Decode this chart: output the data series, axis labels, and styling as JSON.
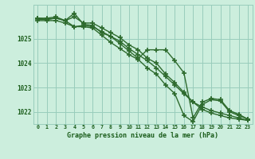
{
  "x": [
    0,
    1,
    2,
    3,
    4,
    5,
    6,
    7,
    8,
    9,
    10,
    11,
    12,
    13,
    14,
    15,
    16,
    17,
    18,
    19,
    20,
    21,
    22,
    23
  ],
  "line1": [
    1025.8,
    1025.8,
    1025.85,
    1025.75,
    1025.9,
    1025.65,
    1025.65,
    1025.45,
    1025.25,
    1025.05,
    1024.75,
    1024.55,
    1024.2,
    1024.0,
    1023.55,
    1023.2,
    1022.8,
    1022.4,
    1022.1,
    1021.95,
    1021.85,
    1021.75,
    1021.7,
    1021.65
  ],
  "line2": [
    1025.75,
    1025.75,
    1025.75,
    1025.65,
    1025.5,
    1025.55,
    1025.5,
    1025.3,
    1025.1,
    1024.9,
    1024.6,
    1024.35,
    1024.1,
    1023.8,
    1023.45,
    1023.1,
    1022.75,
    1022.4,
    1022.2,
    1022.05,
    1021.95,
    1021.85,
    1021.75,
    1021.65
  ],
  "line3": [
    1025.85,
    1025.85,
    1025.9,
    1025.75,
    1026.05,
    1025.6,
    1025.55,
    1025.25,
    1025.1,
    1024.8,
    1024.5,
    1024.2,
    1024.55,
    1024.55,
    1024.55,
    1024.1,
    1023.6,
    1021.75,
    1022.4,
    1022.55,
    1022.5,
    1022.05,
    1021.9,
    1021.7
  ],
  "line4": [
    1025.85,
    1025.8,
    1025.85,
    1025.75,
    1025.5,
    1025.5,
    1025.45,
    1025.15,
    1024.85,
    1024.6,
    1024.35,
    1024.15,
    1023.8,
    1023.55,
    1023.1,
    1022.75,
    1021.85,
    1021.6,
    1022.3,
    1022.5,
    1022.45,
    1022.0,
    1021.85,
    1021.7
  ],
  "line_color": "#2d6a2d",
  "bg_color": "#cceedd",
  "grid_color": "#99ccbb",
  "axis_color": "#1a5c1a",
  "xlabel": "Graphe pression niveau de la mer (hPa)",
  "ylim": [
    1021.5,
    1026.4
  ],
  "yticks": [
    1022,
    1023,
    1024,
    1025
  ],
  "xticks": [
    0,
    1,
    2,
    3,
    4,
    5,
    6,
    7,
    8,
    9,
    10,
    11,
    12,
    13,
    14,
    15,
    16,
    17,
    18,
    19,
    20,
    21,
    22,
    23
  ],
  "marker_size": 4.0,
  "line_width": 1.0
}
